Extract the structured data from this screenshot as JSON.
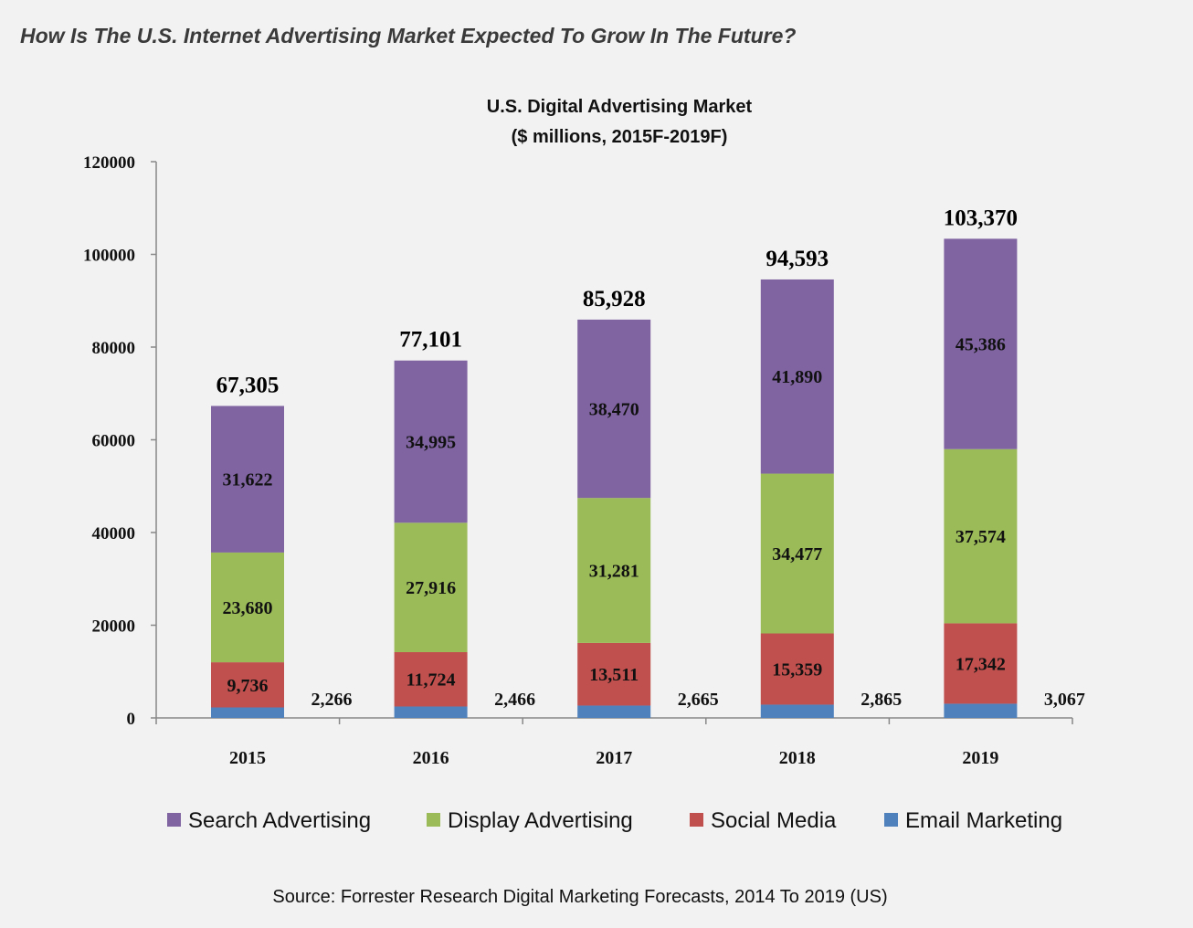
{
  "page_heading": "How Is The U.S. Internet Advertising Market Expected To Grow In The Future?",
  "chart_data": {
    "type": "bar",
    "stacked": true,
    "title": "U.S. Digital Advertising Market",
    "subtitle": "($ millions, 2015F-2019F)",
    "categories": [
      "2015",
      "2016",
      "2017",
      "2018",
      "2019"
    ],
    "ylim": [
      0,
      120000
    ],
    "yticks": [
      "0",
      "20000",
      "40000",
      "60000",
      "80000",
      "100000",
      "120000"
    ],
    "series": [
      {
        "name": "Email Marketing",
        "color": "#4f81bd",
        "values": [
          2266,
          2466,
          2665,
          2865,
          3067
        ],
        "labels": [
          "2,266",
          "2,466",
          "2,665",
          "2,865",
          "3,067"
        ]
      },
      {
        "name": "Social Media",
        "color": "#c0504d",
        "values": [
          9736,
          11724,
          13511,
          15359,
          17342
        ],
        "labels": [
          "9,736",
          "11,724",
          "13,511",
          "15,359",
          "17,342"
        ]
      },
      {
        "name": "Display Advertising",
        "color": "#9bbb59",
        "values": [
          23680,
          27916,
          31281,
          34477,
          37574
        ],
        "labels": [
          "23,680",
          "27,916",
          "31,281",
          "34,477",
          "37,574"
        ]
      },
      {
        "name": "Search Advertising",
        "color": "#8064a2",
        "values": [
          31622,
          34995,
          38470,
          41890,
          45386
        ],
        "labels": [
          "31,622",
          "34,995",
          "38,470",
          "41,890",
          "45,386"
        ]
      }
    ],
    "totals": [
      "67,305",
      "77,101",
      "85,928",
      "94,593",
      "103,370"
    ],
    "legend_order": [
      "Search Advertising",
      "Display Advertising",
      "Social Media",
      "Email Marketing"
    ],
    "legend_position": "bottom",
    "grid": false,
    "source": "Source: Forrester Research Digital Marketing Forecasts, 2014 To 2019 (US)"
  }
}
